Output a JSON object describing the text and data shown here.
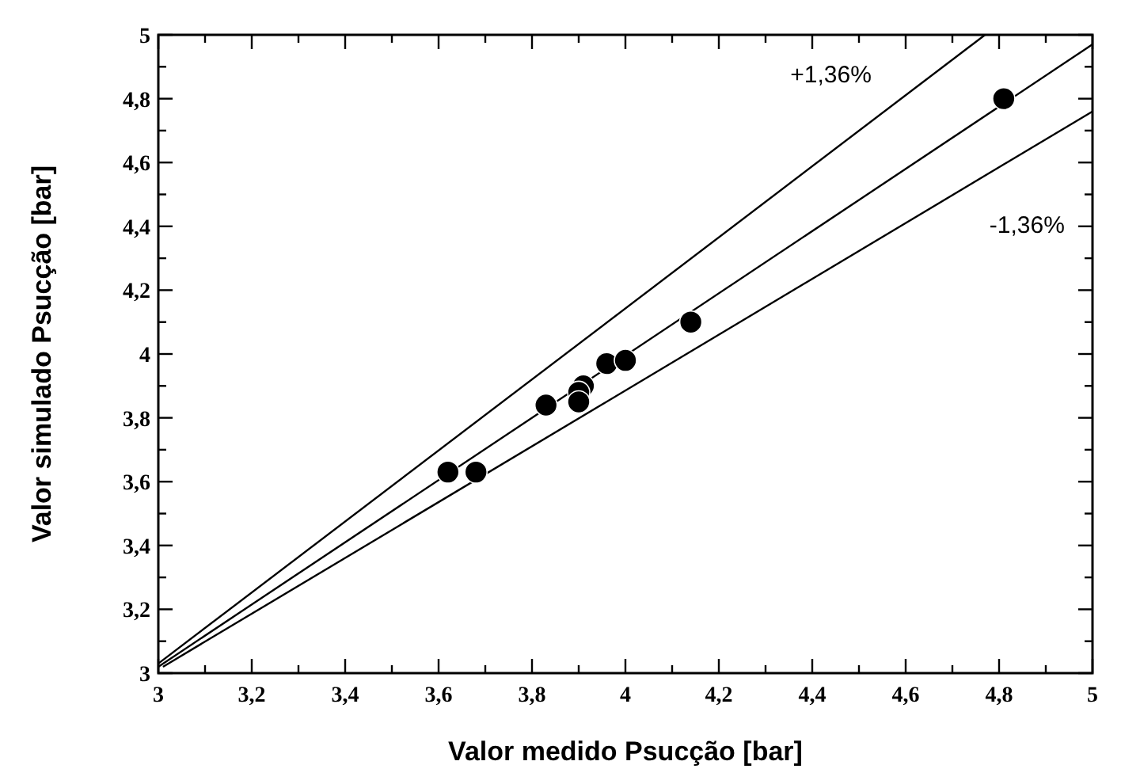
{
  "chart_data": {
    "type": "scatter",
    "xlabel": "Valor medido Psucção  [bar]",
    "ylabel": "Valor simulado Psucção  [bar]",
    "xlim": [
      3,
      5
    ],
    "ylim": [
      3,
      5
    ],
    "xticks": [
      3,
      {
        "value": 3.1,
        "label": null
      },
      {
        "value": 3.2,
        "label": "3,2"
      },
      {
        "value": 3.3,
        "label": null
      },
      {
        "value": 3.4,
        "label": "3,4"
      },
      {
        "value": 3.5,
        "label": null
      },
      {
        "value": 3.6,
        "label": "3,6"
      },
      {
        "value": 3.7,
        "label": null
      },
      {
        "value": 3.8,
        "label": "3,8"
      },
      {
        "value": 3.9,
        "label": null
      },
      4,
      {
        "value": 4.1,
        "label": null
      },
      {
        "value": 4.2,
        "label": "4,2"
      },
      {
        "value": 4.3,
        "label": null
      },
      {
        "value": 4.4,
        "label": "4,4"
      },
      {
        "value": 4.5,
        "label": null
      },
      {
        "value": 4.6,
        "label": "4,6"
      },
      {
        "value": 4.7,
        "label": null
      },
      {
        "value": 4.8,
        "label": "4,8"
      },
      {
        "value": 4.9,
        "label": null
      },
      5
    ],
    "yticks": [
      3,
      {
        "value": 3.1,
        "label": null
      },
      {
        "value": 3.2,
        "label": "3,2"
      },
      {
        "value": 3.3,
        "label": null
      },
      {
        "value": 3.4,
        "label": "3,4"
      },
      {
        "value": 3.5,
        "label": null
      },
      {
        "value": 3.6,
        "label": "3,6"
      },
      {
        "value": 3.7,
        "label": null
      },
      {
        "value": 3.8,
        "label": "3,8"
      },
      {
        "value": 3.9,
        "label": null
      },
      4,
      {
        "value": 4.1,
        "label": null
      },
      {
        "value": 4.2,
        "label": "4,2"
      },
      {
        "value": 4.3,
        "label": null
      },
      {
        "value": 4.4,
        "label": "4,4"
      },
      {
        "value": 4.5,
        "label": null
      },
      {
        "value": 4.6,
        "label": "4,6"
      },
      {
        "value": 4.7,
        "label": null
      },
      {
        "value": 4.8,
        "label": "4,8"
      },
      {
        "value": 4.9,
        "label": null
      },
      5
    ],
    "grid": false,
    "marker": "circle",
    "series": [
      {
        "type": "line",
        "color": "#000000",
        "marker": "none",
        "x": [
          3,
          4.77
        ],
        "values": [
          3.03,
          5
        ]
      },
      {
        "type": "line",
        "color": "#000000",
        "marker": "none",
        "x": [
          3,
          5
        ],
        "values": [
          3.02,
          4.97
        ]
      },
      {
        "type": "line",
        "color": "#000000",
        "marker": "none",
        "x": [
          3.01,
          5
        ],
        "values": [
          3.02,
          4.76
        ]
      },
      {
        "color": "#000000",
        "x": [
          3.62,
          3.68,
          3.83,
          3.91,
          3.9,
          3.9,
          3.96,
          4,
          4.14,
          4.81
        ],
        "values": [
          3.63,
          3.63,
          3.84,
          3.9,
          3.88,
          3.85,
          3.97,
          3.98,
          4.1,
          4.8
        ]
      }
    ],
    "annotations": [
      "+1,36%",
      "-1,36%"
    ]
  }
}
